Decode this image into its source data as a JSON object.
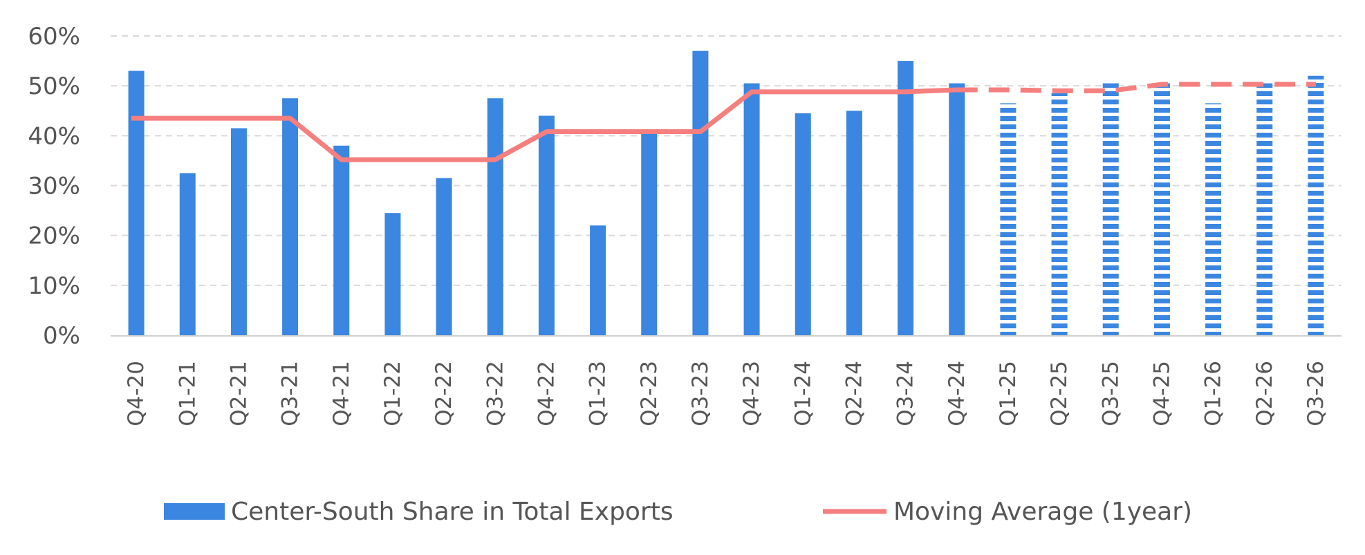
{
  "chart_data": {
    "type": "bar",
    "categories": [
      "Q4-20",
      "Q1-21",
      "Q2-21",
      "Q3-21",
      "Q4-21",
      "Q1-22",
      "Q2-22",
      "Q3-22",
      "Q4-22",
      "Q1-23",
      "Q2-23",
      "Q3-23",
      "Q4-23",
      "Q1-24",
      "Q2-24",
      "Q3-24",
      "Q4-24",
      "Q1-25",
      "Q2-25",
      "Q3-25",
      "Q4-25",
      "Q1-26",
      "Q2-26",
      "Q3-26"
    ],
    "series": [
      {
        "name": "Center-South Share in Total Exports",
        "type": "bar",
        "color": "#3a86e0",
        "forecast_from_index": 17,
        "values": [
          53,
          32.5,
          41.5,
          47.5,
          38,
          24.5,
          31.5,
          47.5,
          44,
          22,
          40.5,
          57,
          50.5,
          44.5,
          45,
          55,
          50.5,
          46.5,
          48.5,
          50.5,
          50.5,
          46.5,
          50.5,
          52
        ]
      },
      {
        "name": "Moving Average (1year)",
        "type": "line",
        "color": "#f57f7f",
        "forecast_from_index": 16,
        "values": [
          43.5,
          43.5,
          43.5,
          43.5,
          35.2,
          35.2,
          35.2,
          35.2,
          40.8,
          40.8,
          40.8,
          40.8,
          48.8,
          48.8,
          48.8,
          48.8,
          49.2,
          49.2,
          49.0,
          49.0,
          50.3,
          50.3,
          50.3,
          50.3
        ]
      }
    ],
    "y_ticks": [
      "0%",
      "10%",
      "20%",
      "30%",
      "40%",
      "50%",
      "60%"
    ],
    "ylim": [
      0,
      60
    ],
    "grid": "horizontal dashed",
    "legend_position": "bottom"
  }
}
